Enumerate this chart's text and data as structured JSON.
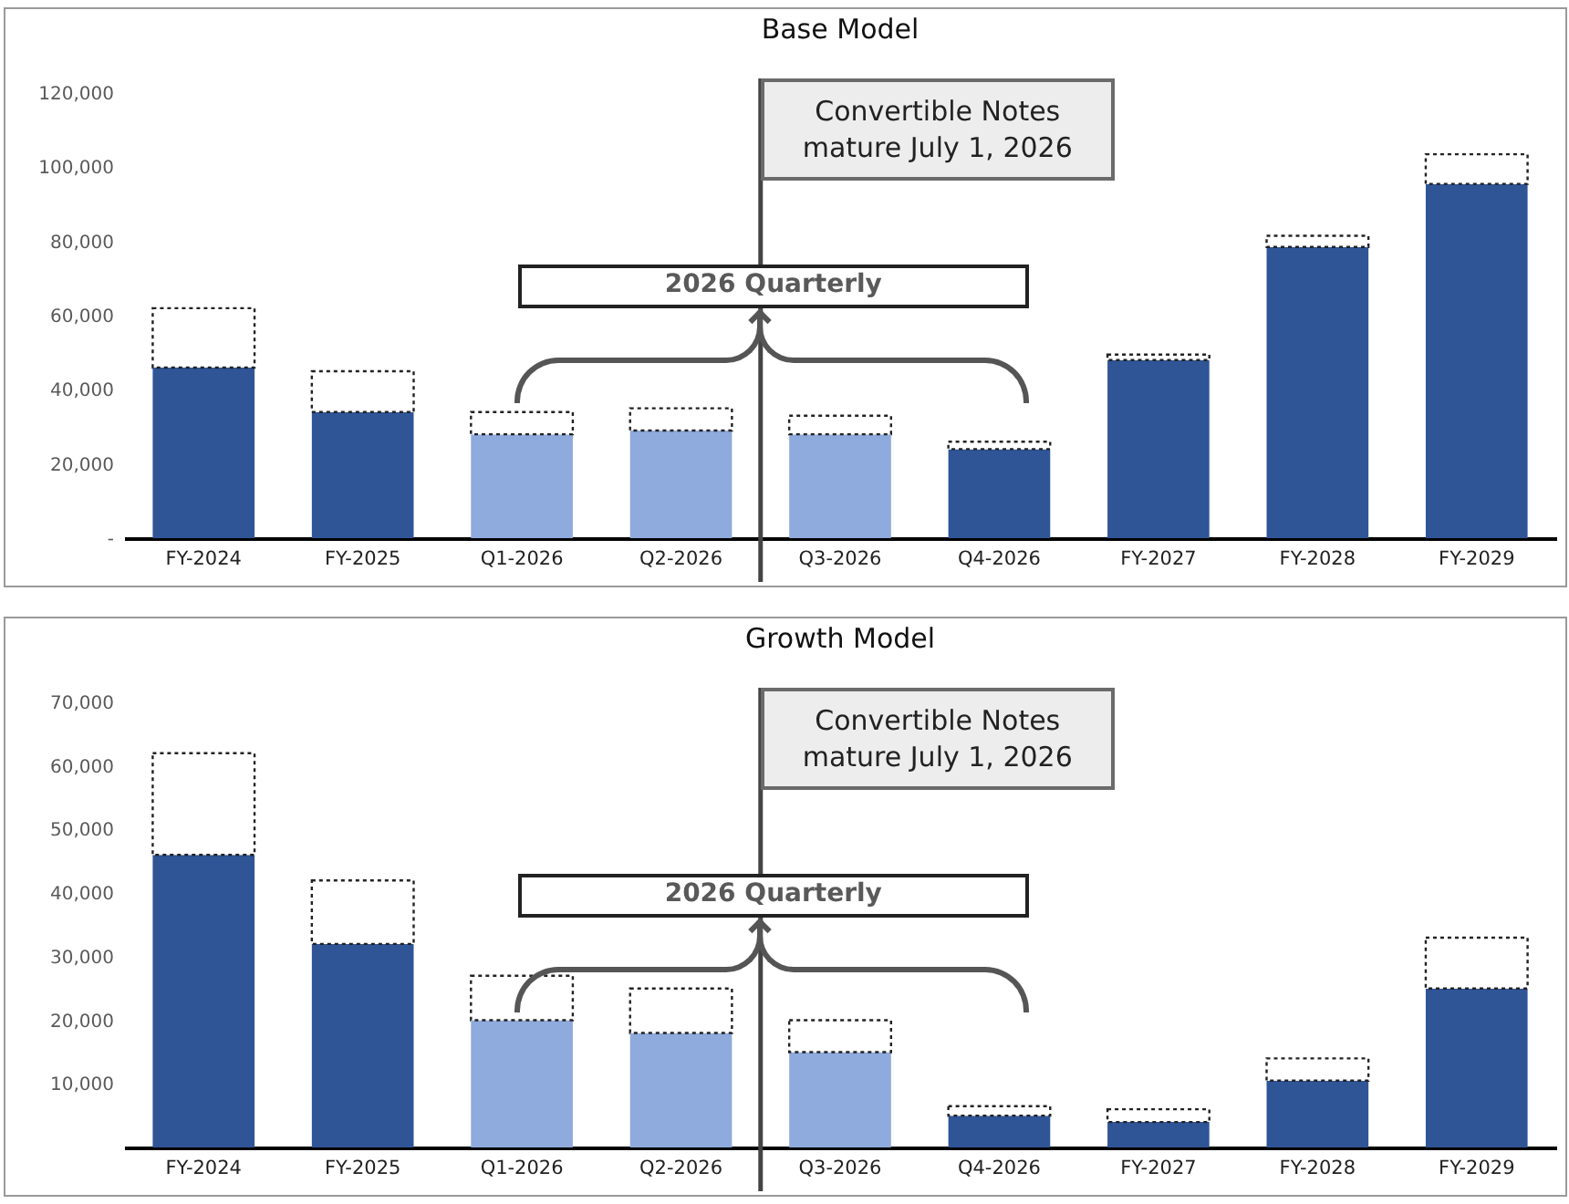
{
  "chart_data": [
    {
      "type": "bar",
      "title": "Base Model",
      "stacked": true,
      "categories": [
        "FY-2024",
        "FY-2025",
        "Q1-2026",
        "Q2-2026",
        "Q3-2026",
        "Q4-2026",
        "FY-2027",
        "FY-2028",
        "FY-2029"
      ],
      "ylim": [
        0,
        120000
      ],
      "yticks": [
        {
          "value": 0,
          "label": "-"
        },
        {
          "value": 20000,
          "label": "20,000"
        },
        {
          "value": 40000,
          "label": "40,000"
        },
        {
          "value": 60000,
          "label": "60,000"
        },
        {
          "value": 80000,
          "label": "80,000"
        },
        {
          "value": 100000,
          "label": "100,000"
        },
        {
          "value": 120000,
          "label": "120,000"
        }
      ],
      "series": [
        {
          "colors": [
            "#2f5597",
            "#2f5597",
            "#8faadc",
            "#8faadc",
            "#8faadc",
            "#2f5597",
            "#2f5597",
            "#2f5597",
            "#2f5597"
          ],
          "values": [
            46000,
            34000,
            28000,
            29000,
            28000,
            24000,
            48000,
            78500,
            95500
          ]
        },
        {
          "color": "#ffffff",
          "line_style": "dotted",
          "values": [
            16000,
            11000,
            6000,
            6000,
            5000,
            2000,
            1500,
            3000,
            8000
          ]
        }
      ],
      "annotations": [
        "Convertible Notes mature July 1, 2026",
        "2026 Quarterly"
      ]
    },
    {
      "type": "bar",
      "title": "Growth Model",
      "stacked": true,
      "categories": [
        "FY-2024",
        "FY-2025",
        "Q1-2026",
        "Q2-2026",
        "Q3-2026",
        "Q4-2026",
        "FY-2027",
        "FY-2028",
        "FY-2029"
      ],
      "ylim": [
        0,
        70000
      ],
      "yticks": [
        {
          "value": 10000,
          "label": "10,000"
        },
        {
          "value": 20000,
          "label": "20,000"
        },
        {
          "value": 30000,
          "label": "30,000"
        },
        {
          "value": 40000,
          "label": "40,000"
        },
        {
          "value": 50000,
          "label": "50,000"
        },
        {
          "value": 60000,
          "label": "60,000"
        },
        {
          "value": 70000,
          "label": "70,000"
        }
      ],
      "series": [
        {
          "colors": [
            "#2f5597",
            "#2f5597",
            "#8faadc",
            "#8faadc",
            "#8faadc",
            "#2f5597",
            "#2f5597",
            "#2f5597",
            "#2f5597"
          ],
          "values": [
            46000,
            32000,
            20000,
            18000,
            15000,
            5000,
            4000,
            10500,
            25000
          ]
        },
        {
          "color": "#ffffff",
          "line_style": "dotted",
          "values": [
            16000,
            10000,
            7000,
            7000,
            5000,
            1500,
            2000,
            3500,
            8000
          ]
        }
      ],
      "annotations": [
        "Convertible Notes mature July 1, 2026",
        "2026 Quarterly"
      ]
    }
  ]
}
